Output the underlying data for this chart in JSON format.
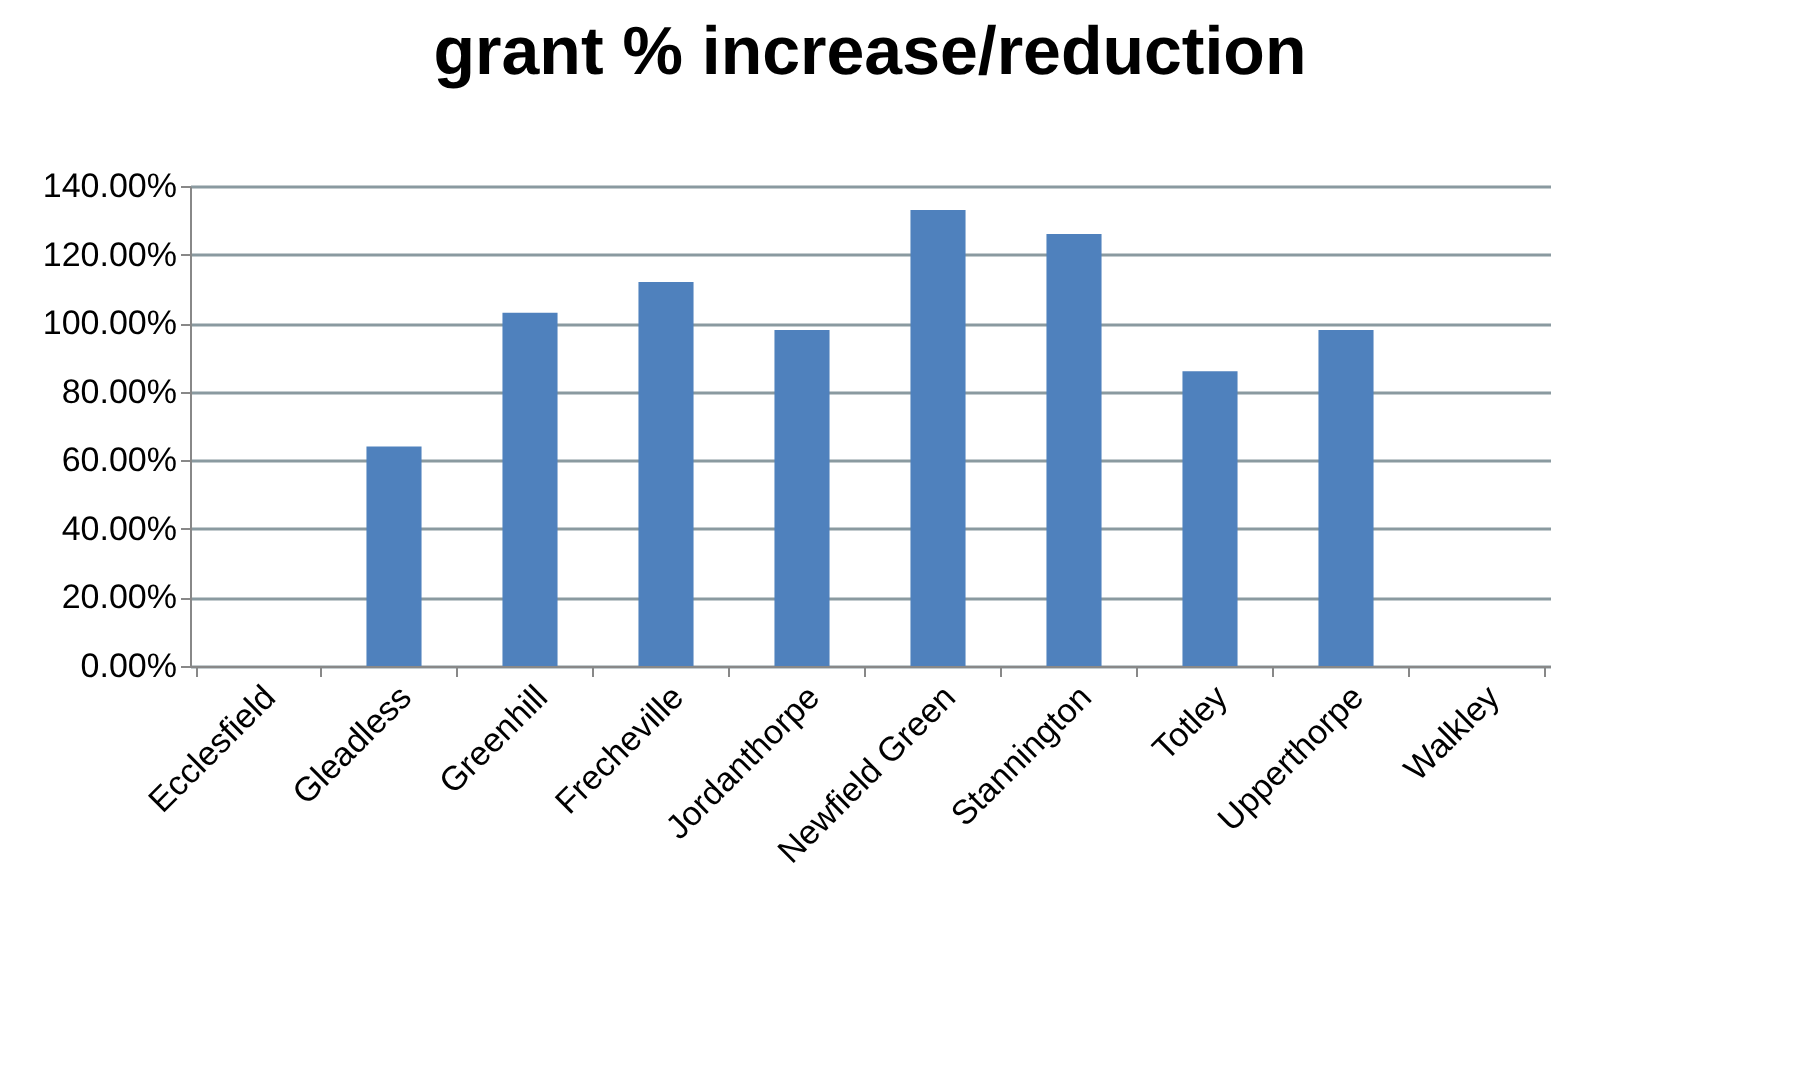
{
  "chart_data": {
    "type": "bar",
    "title": "grant % increase/reduction",
    "categories": [
      "Ecclesfield",
      "Gleadless",
      "Greenhill",
      "Frecheville",
      "Jordanthorpe",
      "Newfield Green",
      "Stannington",
      "Totley",
      "Upperthorpe",
      "Walkley"
    ],
    "values": [
      0,
      64,
      103,
      112,
      98,
      133,
      126,
      86,
      98,
      0
    ],
    "color": "#4f81bd",
    "ylim": [
      0,
      140
    ],
    "yticks": [
      {
        "value": 0,
        "label": "0.00%"
      },
      {
        "value": 20,
        "label": "20.00%"
      },
      {
        "value": 40,
        "label": "40.00%"
      },
      {
        "value": 60,
        "label": "60.00%"
      },
      {
        "value": 80,
        "label": "80.00%"
      },
      {
        "value": 100,
        "label": "100.00%"
      },
      {
        "value": 120,
        "label": "120.00%"
      },
      {
        "value": 140,
        "label": "140.00%"
      }
    ],
    "grid": "y"
  }
}
